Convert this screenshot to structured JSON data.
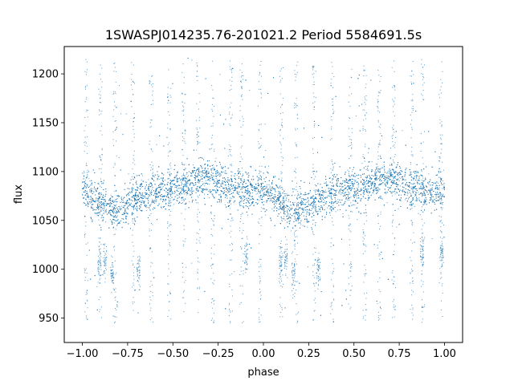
{
  "chart_data": {
    "type": "scatter",
    "title": "1SWASPJ014235.76-201021.2 Period 5584691.5s",
    "xlabel": "phase",
    "ylabel": "flux",
    "xlim": [
      -1.1,
      1.1
    ],
    "ylim": [
      925,
      1228
    ],
    "grid": false,
    "marker_color": "#1f77b4",
    "xticks": [
      {
        "value": -1.0,
        "label": "−1.00"
      },
      {
        "value": -0.75,
        "label": "−0.75"
      },
      {
        "value": -0.5,
        "label": "−0.50"
      },
      {
        "value": -0.25,
        "label": "−0.25"
      },
      {
        "value": 0.0,
        "label": "0.00"
      },
      {
        "value": 0.25,
        "label": "0.25"
      },
      {
        "value": 0.5,
        "label": "0.50"
      },
      {
        "value": 0.75,
        "label": "0.75"
      },
      {
        "value": 1.0,
        "label": "1.00"
      }
    ],
    "yticks": [
      {
        "value": 950,
        "label": "950"
      },
      {
        "value": 1000,
        "label": "1000"
      },
      {
        "value": 1050,
        "label": "1050"
      },
      {
        "value": 1100,
        "label": "1100"
      },
      {
        "value": 1150,
        "label": "1150"
      },
      {
        "value": 1200,
        "label": "1200"
      }
    ],
    "phase_range": [
      -1.0,
      1.0
    ],
    "light_curve_profile": [
      {
        "phase": 0.0,
        "flux": 1082
      },
      {
        "phase": 0.05,
        "flux": 1074
      },
      {
        "phase": 0.1,
        "flux": 1066
      },
      {
        "phase": 0.15,
        "flux": 1060
      },
      {
        "phase": 0.2,
        "flux": 1062
      },
      {
        "phase": 0.25,
        "flux": 1066
      },
      {
        "phase": 0.3,
        "flux": 1072
      },
      {
        "phase": 0.35,
        "flux": 1077
      },
      {
        "phase": 0.4,
        "flux": 1079
      },
      {
        "phase": 0.45,
        "flux": 1080
      },
      {
        "phase": 0.5,
        "flux": 1082
      },
      {
        "phase": 0.55,
        "flux": 1084
      },
      {
        "phase": 0.6,
        "flux": 1088
      },
      {
        "phase": 0.65,
        "flux": 1092
      },
      {
        "phase": 0.7,
        "flux": 1093
      },
      {
        "phase": 0.75,
        "flux": 1088
      },
      {
        "phase": 0.8,
        "flux": 1083
      },
      {
        "phase": 0.85,
        "flux": 1082
      },
      {
        "phase": 0.9,
        "flux": 1080
      },
      {
        "phase": 0.95,
        "flux": 1078
      },
      {
        "phase": 1.0,
        "flux": 1082
      }
    ],
    "scatter_width": 11,
    "dip_clusters": [
      {
        "phase": -0.905,
        "flux": 1005
      },
      {
        "phase": -0.875,
        "flux": 1008
      },
      {
        "phase": -0.835,
        "flux": 995
      },
      {
        "phase": -0.69,
        "flux": 1000
      },
      {
        "phase": -0.095,
        "flux": 1010
      },
      {
        "phase": 0.095,
        "flux": 1005
      },
      {
        "phase": 0.125,
        "flux": 1010
      },
      {
        "phase": 0.165,
        "flux": 995
      },
      {
        "phase": 0.305,
        "flux": 1000
      },
      {
        "phase": 0.875,
        "flux": 1020
      },
      {
        "phase": 0.985,
        "flux": 1015
      }
    ],
    "point_count": 9000
  }
}
